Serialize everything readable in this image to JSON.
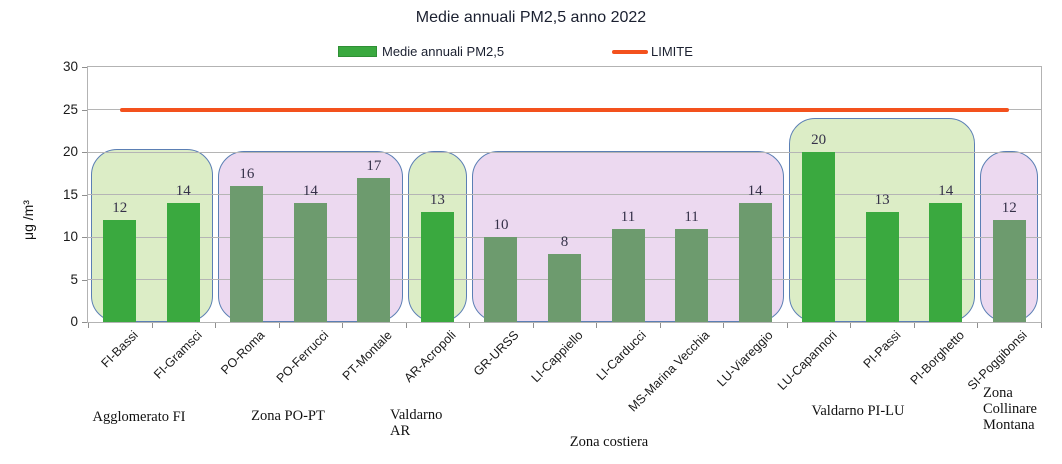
{
  "chart_data": {
    "type": "bar",
    "title": "Medie annuali PM2,5 anno 2022",
    "ylabel": "μg /m³",
    "ylim": [
      0,
      30
    ],
    "yticks": [
      0,
      5,
      10,
      15,
      20,
      25,
      30
    ],
    "grid": true,
    "legend_position": "top",
    "series_name": "Medie annuali PM2,5",
    "legend": [
      {
        "label": "Medie annuali PM2,5",
        "marker": "bar",
        "color": "#3aa93f"
      },
      {
        "label": "LIMITE",
        "marker": "line",
        "color": "#f3511d"
      }
    ],
    "limit": {
      "label": "LIMITE",
      "value": 25,
      "color": "#f3511d"
    },
    "categories": [
      "FI-Bassi",
      "FI-Gramsci",
      "PO-Roma",
      "PO-Ferrucci",
      "PT-Montale",
      "AR-Acropoli",
      "GR-URSS",
      "LI-Cappiello",
      "LI-Carducci",
      "MS-Marina Vecchia",
      "LU-Viareggio",
      "LU-Capannori",
      "PI-Passi",
      "PI-Borghetto",
      "SI-Poggibonsi"
    ],
    "values": [
      12,
      14,
      16,
      14,
      17,
      13,
      10,
      8,
      11,
      11,
      14,
      20,
      13,
      14,
      12
    ],
    "zones": [
      {
        "label": "Agglomerato FI",
        "start": 0,
        "count": 2,
        "style": "green",
        "box_top": 20.4
      },
      {
        "label": "Zona PO-PT",
        "start": 2,
        "count": 3,
        "style": "purple",
        "box_top": 20.1
      },
      {
        "label": "Valdarno\nAR",
        "start": 5,
        "count": 1,
        "style": "green",
        "box_top": 20.1
      },
      {
        "label": "Zona costiera",
        "start": 6,
        "count": 5,
        "style": "purple",
        "box_top": 20.1
      },
      {
        "label": "Valdarno  PI-LU",
        "start": 11,
        "count": 3,
        "style": "green",
        "box_top": 24
      },
      {
        "label": "Zona\nCollinare\nMontana",
        "start": 14,
        "count": 1,
        "style": "purple",
        "box_top": 20.1
      }
    ],
    "colors": {
      "bar_bright": "#3aa93f",
      "bar_muted": "#6d9b6e",
      "zone_green_bg": "#dcedc6",
      "zone_purple_bg": "#ecd9f0",
      "zone_border": "#5b7fb4",
      "limit_line": "#f3511d",
      "gridline": "#b5b5b5"
    }
  }
}
